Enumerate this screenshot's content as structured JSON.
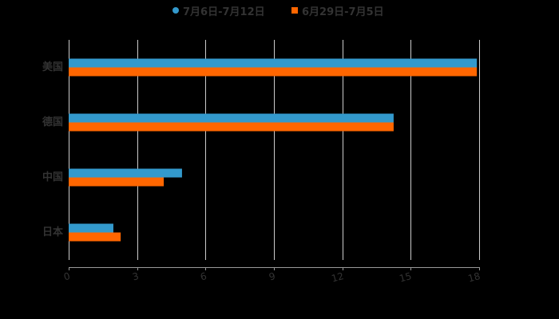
{
  "chart_data": {
    "type": "bar",
    "orientation": "horizontal",
    "title": "",
    "xlabel": "",
    "ylabel": "",
    "categories": [
      "美国",
      "德国",
      "中国",
      "日本"
    ],
    "series": [
      {
        "name": "7月6日-7月12日",
        "color": "#3399CC",
        "marker": "circle",
        "values": [
          17.9,
          14.25,
          4.97,
          1.96
        ]
      },
      {
        "name": "6月29日-7月5日",
        "color": "#FF6600",
        "marker": "square",
        "values": [
          17.9,
          14.25,
          4.17,
          2.28
        ]
      }
    ],
    "xlim": [
      0,
      18
    ],
    "xticks": [
      "0",
      "3",
      "6",
      "9",
      "12",
      "15",
      "18"
    ],
    "grid": true,
    "legend_position": "top"
  },
  "colors": {
    "background": "#000000",
    "grid": "#CCCCCC",
    "axis": "#999999",
    "text": "#333333"
  }
}
